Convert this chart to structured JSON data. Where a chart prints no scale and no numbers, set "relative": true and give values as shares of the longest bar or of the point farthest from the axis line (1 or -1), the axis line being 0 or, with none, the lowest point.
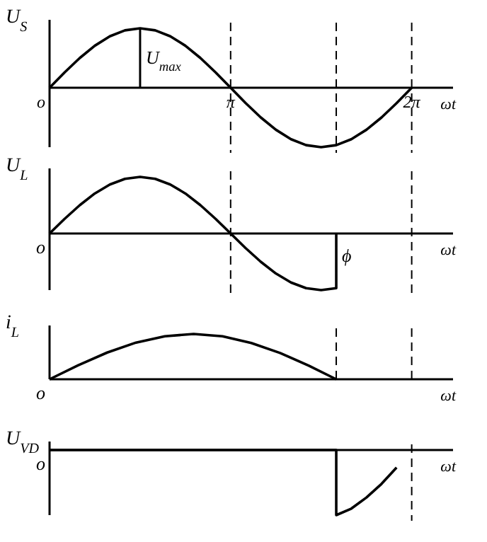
{
  "chart_data": [
    {
      "type": "line",
      "relative": true,
      "ylabel": "U$_{S}$",
      "xlabel": "ωt",
      "xlim": [
        0,
        7
      ],
      "xticks": [
        {
          "value": 0,
          "label": "o"
        },
        {
          "value": 3.1416,
          "label": "π"
        },
        {
          "value": 6.2832,
          "label": "2π"
        }
      ],
      "line_style": "solid",
      "x": [
        0,
        0.262,
        0.524,
        0.785,
        1.047,
        1.309,
        1.571,
        1.833,
        2.094,
        2.356,
        2.618,
        2.88,
        3.142,
        3.403,
        3.665,
        3.927,
        4.189,
        4.451,
        4.712,
        4.974,
        5.236,
        5.498,
        5.76,
        6.021,
        6.283
      ],
      "series": [
        {
          "color": "#000000",
          "values": [
            0,
            0.259,
            0.5,
            0.707,
            0.866,
            0.966,
            1,
            0.966,
            0.866,
            0.707,
            0.5,
            0.259,
            0,
            -0.259,
            -0.5,
            -0.707,
            -0.866,
            -0.966,
            -1,
            -0.966,
            -0.866,
            -0.707,
            -0.5,
            -0.259,
            0
          ]
        }
      ],
      "annotations": [
        {
          "text": "U$_{max}$",
          "x": 1.571,
          "y": 1
        }
      ],
      "ref_lines": [
        {
          "axis": "x",
          "value": 3.1416,
          "line_style": "dashed"
        },
        {
          "axis": "x",
          "value": 4.974,
          "line_style": "dashed"
        },
        {
          "axis": "x",
          "value": 6.2832,
          "line_style": "dashed"
        }
      ]
    },
    {
      "type": "line",
      "relative": true,
      "ylabel": "U$_{L}$",
      "xlabel": "ωt",
      "xlim": [
        0,
        7
      ],
      "line_style": "solid",
      "x": [
        0,
        0.262,
        0.524,
        0.785,
        1.047,
        1.309,
        1.571,
        1.833,
        2.094,
        2.356,
        2.618,
        2.88,
        3.142,
        3.403,
        3.665,
        3.927,
        4.189,
        4.451,
        4.712,
        4.974,
        4.974
      ],
      "series": [
        {
          "color": "#000000",
          "values": [
            0,
            0.259,
            0.5,
            0.707,
            0.866,
            0.966,
            1,
            0.966,
            0.866,
            0.707,
            0.5,
            0.259,
            0,
            -0.259,
            -0.5,
            -0.707,
            -0.866,
            -0.966,
            -1,
            -0.966,
            0
          ]
        }
      ],
      "annotations": [
        {
          "text": "o",
          "x": 0,
          "y": 0
        },
        {
          "text": "ϕ",
          "x": 4.974,
          "y": -0.2
        }
      ],
      "ref_lines": [
        {
          "axis": "x",
          "value": 3.1416,
          "line_style": "dashed"
        },
        {
          "axis": "x",
          "value": 6.2832,
          "line_style": "dashed"
        }
      ]
    },
    {
      "type": "line",
      "relative": true,
      "ylabel": "i$_{L}$",
      "xlabel": "ωt",
      "xlim": [
        0,
        7
      ],
      "line_style": "solid",
      "x": [
        0,
        0.5,
        1,
        1.5,
        2,
        2.5,
        3,
        3.5,
        4,
        4.5,
        4.974
      ],
      "series": [
        {
          "color": "#000000",
          "values": [
            0,
            0.31,
            0.59,
            0.81,
            0.95,
            1,
            0.95,
            0.8,
            0.58,
            0.3,
            0
          ]
        }
      ],
      "annotations": [
        {
          "text": "o",
          "x": 0,
          "y": 0
        }
      ],
      "ref_lines": [
        {
          "axis": "x",
          "value": 4.974,
          "line_style": "dashed"
        },
        {
          "axis": "x",
          "value": 6.2832,
          "line_style": "dashed"
        }
      ]
    },
    {
      "type": "line",
      "relative": true,
      "ylabel": "U$_{VD}$",
      "xlabel": "ωt",
      "xlim": [
        0,
        7
      ],
      "line_style": "solid",
      "x": [
        0,
        4.974,
        4.974,
        5.236,
        5.498,
        5.76,
        6.021
      ],
      "series": [
        {
          "color": "#000000",
          "values": [
            0,
            0,
            -1,
            -0.9,
            -0.73,
            -0.52,
            -0.27
          ]
        }
      ],
      "annotations": [
        {
          "text": "o",
          "x": 0,
          "y": 0
        }
      ],
      "ref_lines": [
        {
          "axis": "x",
          "value": 6.2832,
          "line_style": "dashed"
        }
      ]
    }
  ]
}
